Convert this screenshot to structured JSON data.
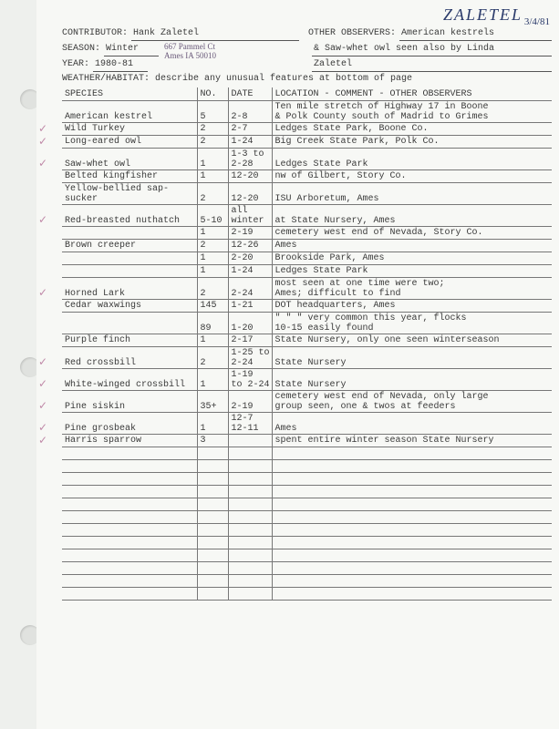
{
  "handwritten": {
    "name_top": "ZALETEL",
    "date_top": "3/4/81",
    "address": "667 Pammel Ct\nAmes IA 50010"
  },
  "header": {
    "contributor_label": "CONTRIBUTOR:",
    "contributor": "Hank Zaletel",
    "season_label": "SEASON:",
    "season": "Winter",
    "year_label": "YEAR:",
    "year": "1980-81",
    "other_obs_label": "OTHER OBSERVERS:",
    "other_obs_1": "American kestrels",
    "other_obs_2": "& Saw-whet owl seen also by Linda",
    "other_obs_3": "Zaletel",
    "habitat": "WEATHER/HABITAT: describe any unusual features at bottom of page"
  },
  "cols": {
    "species": "SPECIES",
    "no": "NO.",
    "date": "DATE",
    "loc": "LOCATION - COMMENT - OTHER OBSERVERS"
  },
  "rows": [
    {
      "sp": "American kestrel",
      "no": "5",
      "date": "2-8",
      "loc": "Ten mile stretch of Highway 17 in Boone\n& Polk County south of Madrid to Grimes",
      "two": true
    },
    {
      "sp": "Wild Turkey",
      "no": "2",
      "date": "2-7",
      "loc": "Ledges State Park, Boone Co.",
      "check": true
    },
    {
      "sp": "Long-eared owl",
      "no": "2",
      "date": "1-24",
      "loc": "Big Creek State Park, Polk Co.",
      "check": true
    },
    {
      "sp": "Saw-whet owl",
      "no": "1",
      "date": "1-3 to\n2-28",
      "loc": "Ledges State Park",
      "two": true,
      "check": true
    },
    {
      "sp": "Belted kingfisher",
      "no": "1",
      "date": "12-20",
      "loc": "nw of Gilbert, Story Co."
    },
    {
      "sp": "Yellow-bellied sap-\nsucker",
      "no": "2",
      "date": "12-20",
      "loc": "ISU Arboretum, Ames",
      "two": true
    },
    {
      "sp": "Red-breasted nuthatch",
      "no": "5-10",
      "date": "all\nwinter",
      "loc": "at State Nursery, Ames",
      "two": true,
      "check": true
    },
    {
      "sp": "",
      "no": "1",
      "date": "2-19",
      "loc": "cemetery west end of Nevada, Story Co."
    },
    {
      "sp": "Brown creeper",
      "no": "2",
      "date": "12-26",
      "loc": "Ames"
    },
    {
      "sp": "",
      "no": "1",
      "date": "2-20",
      "loc": "Brookside Park, Ames"
    },
    {
      "sp": "",
      "no": "1",
      "date": "1-24",
      "loc": "Ledges State Park"
    },
    {
      "sp": "Horned Lark",
      "no": "2",
      "date": "2-24",
      "loc": "most seen at one time were two;\nAmes; difficult to find",
      "two": true,
      "check": true
    },
    {
      "sp": "Cedar waxwings",
      "no": "145",
      "date": "1-21",
      "loc": "DOT headquarters, Ames"
    },
    {
      "sp": "",
      "no": "89",
      "date": "1-20",
      "loc": "\"   \"   \"   very common this year, flocks\n            10-15 easily found",
      "two": true
    },
    {
      "sp": "Purple finch",
      "no": "1",
      "date": "2-17",
      "loc": "State Nursery, only one seen winterseason"
    },
    {
      "sp": "Red crossbill",
      "no": "2",
      "date": "1-25 to\n2-24",
      "loc": "State Nursery",
      "two": true,
      "check": true
    },
    {
      "sp": "White-winged crossbill",
      "no": "1",
      "date": "1-19\nto 2-24",
      "loc": "State Nursery",
      "two": true,
      "check": true
    },
    {
      "sp": "Pine siskin",
      "no": "35+",
      "date": "2-19",
      "loc": "cemetery west end of Nevada, only large\ngroup seen, one & twos at feeders",
      "two": true,
      "check": true
    },
    {
      "sp": "Pine grosbeak",
      "no": "1",
      "date": "12-7\n12-11",
      "loc": "Ames",
      "two": true,
      "check": true
    },
    {
      "sp": "Harris sparrow",
      "no": "3",
      "date": "",
      "loc": "spent entire winter season State Nursery",
      "check": true
    }
  ],
  "empty_row_count": 12,
  "colors": {
    "bg": "#eef0ed",
    "paper": "#f7f8f5",
    "text": "#3a3a3a",
    "rule": "#777777",
    "pen_blue": "#2a3a6a",
    "pen_pink": "#c08aa8"
  }
}
